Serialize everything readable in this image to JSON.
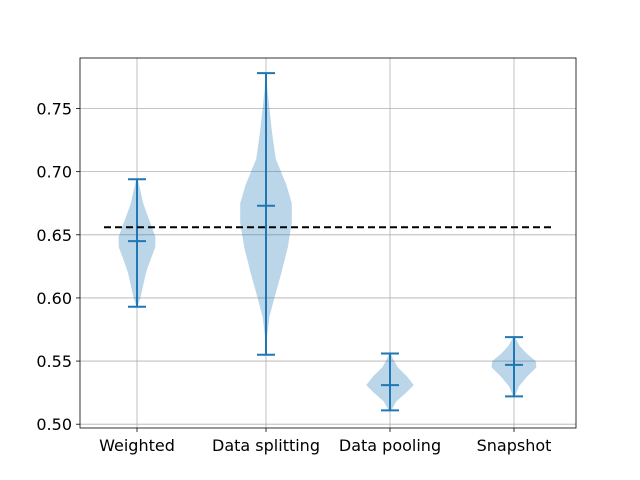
{
  "chart_data": {
    "type": "violin",
    "title": "",
    "xlabel": "",
    "ylabel": "",
    "categories": [
      "Weighted",
      "Data splitting",
      "Data pooling",
      "Snapshot"
    ],
    "ylim": [
      0.497,
      0.79
    ],
    "yticks": [
      "0.50",
      "0.55",
      "0.60",
      "0.65",
      "0.70",
      "0.75"
    ],
    "grid": true,
    "reference_line": {
      "y": 0.656,
      "style": "dashed",
      "color": "#000000"
    },
    "violins": [
      {
        "category": "Weighted",
        "min": 0.593,
        "median": 0.645,
        "max": 0.694,
        "profile": [
          [
            0.593,
            0.02
          ],
          [
            0.6,
            0.12
          ],
          [
            0.61,
            0.22
          ],
          [
            0.62,
            0.32
          ],
          [
            0.63,
            0.48
          ],
          [
            0.64,
            0.65
          ],
          [
            0.648,
            0.66
          ],
          [
            0.655,
            0.55
          ],
          [
            0.665,
            0.38
          ],
          [
            0.675,
            0.22
          ],
          [
            0.685,
            0.12
          ],
          [
            0.694,
            0.03
          ]
        ]
      },
      {
        "category": "Data splitting",
        "min": 0.555,
        "median": 0.673,
        "max": 0.778,
        "profile": [
          [
            0.555,
            0.02
          ],
          [
            0.57,
            0.04
          ],
          [
            0.585,
            0.12
          ],
          [
            0.6,
            0.3
          ],
          [
            0.62,
            0.55
          ],
          [
            0.64,
            0.78
          ],
          [
            0.66,
            0.92
          ],
          [
            0.675,
            0.92
          ],
          [
            0.69,
            0.72
          ],
          [
            0.71,
            0.35
          ],
          [
            0.73,
            0.22
          ],
          [
            0.75,
            0.12
          ],
          [
            0.765,
            0.05
          ],
          [
            0.778,
            0.02
          ]
        ]
      },
      {
        "category": "Data pooling",
        "min": 0.511,
        "median": 0.531,
        "max": 0.556,
        "profile": [
          [
            0.511,
            0.05
          ],
          [
            0.518,
            0.22
          ],
          [
            0.525,
            0.58
          ],
          [
            0.531,
            0.85
          ],
          [
            0.538,
            0.6
          ],
          [
            0.545,
            0.28
          ],
          [
            0.551,
            0.12
          ],
          [
            0.556,
            0.03
          ]
        ]
      },
      {
        "category": "Snapshot",
        "min": 0.522,
        "median": 0.547,
        "max": 0.569,
        "profile": [
          [
            0.522,
            0.03
          ],
          [
            0.53,
            0.18
          ],
          [
            0.538,
            0.48
          ],
          [
            0.545,
            0.8
          ],
          [
            0.55,
            0.78
          ],
          [
            0.556,
            0.45
          ],
          [
            0.562,
            0.2
          ],
          [
            0.569,
            0.03
          ]
        ]
      }
    ],
    "colors": {
      "violin_fill": "#1f77b4",
      "violin_alpha": 0.3,
      "lines": "#1f77b4"
    }
  }
}
